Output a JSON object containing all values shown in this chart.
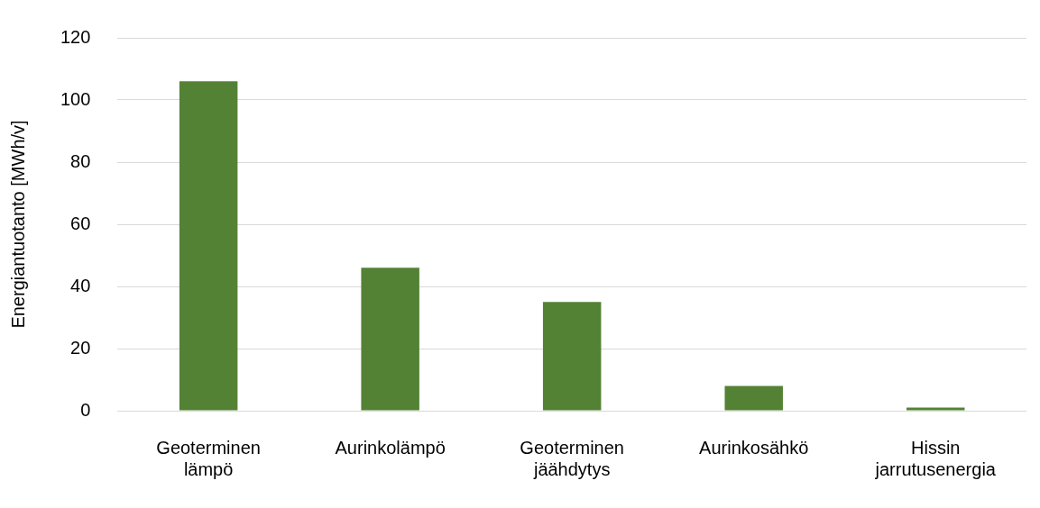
{
  "chart_data": {
    "type": "bar",
    "ylabel": "Energiantuotanto [MWh/v]",
    "categories": [
      "Geoterminen lämpö",
      "Aurinkolämpö",
      "Geoterminen jäähdytys",
      "Aurinkosähkö",
      "Hissin jarrutusenergia"
    ],
    "values": [
      106,
      46,
      35,
      8,
      1
    ],
    "color": "#548235",
    "ylim": [
      0,
      120
    ],
    "yticks": [
      0,
      20,
      40,
      60,
      80,
      100,
      120
    ],
    "grid": "y"
  }
}
